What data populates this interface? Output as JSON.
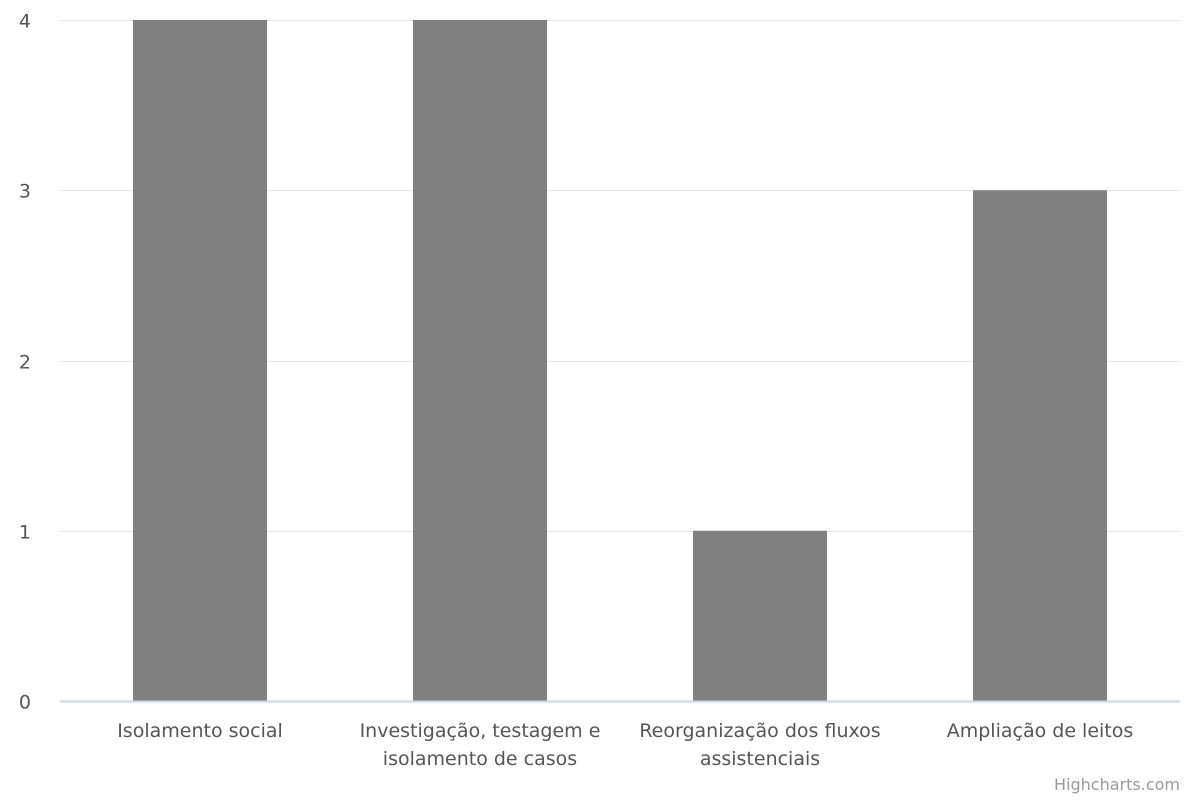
{
  "chart_data": {
    "type": "bar",
    "categories": [
      "Isolamento social",
      "Investigação, testagem e isolamento de casos",
      "Reorganização dos fluxos assistenciais",
      "Ampliação de leitos"
    ],
    "category_lines": [
      [
        "Isolamento social"
      ],
      [
        "Investigação, testagem e",
        "isolamento de casos"
      ],
      [
        "Reorganização dos fluxos",
        "assistenciais"
      ],
      [
        "Ampliação de leitos"
      ]
    ],
    "values": [
      4,
      4,
      1,
      3
    ],
    "ylim": [
      0,
      4
    ],
    "yticks": [
      0,
      1,
      2,
      3,
      4
    ],
    "grid": true,
    "legend": "none",
    "title": "",
    "xlabel": "",
    "ylabel": "",
    "colors": {
      "bar": "#808080",
      "grid": "#e6e6e6",
      "axis": "#ccd6eb"
    }
  },
  "credits": "Highcharts.com"
}
